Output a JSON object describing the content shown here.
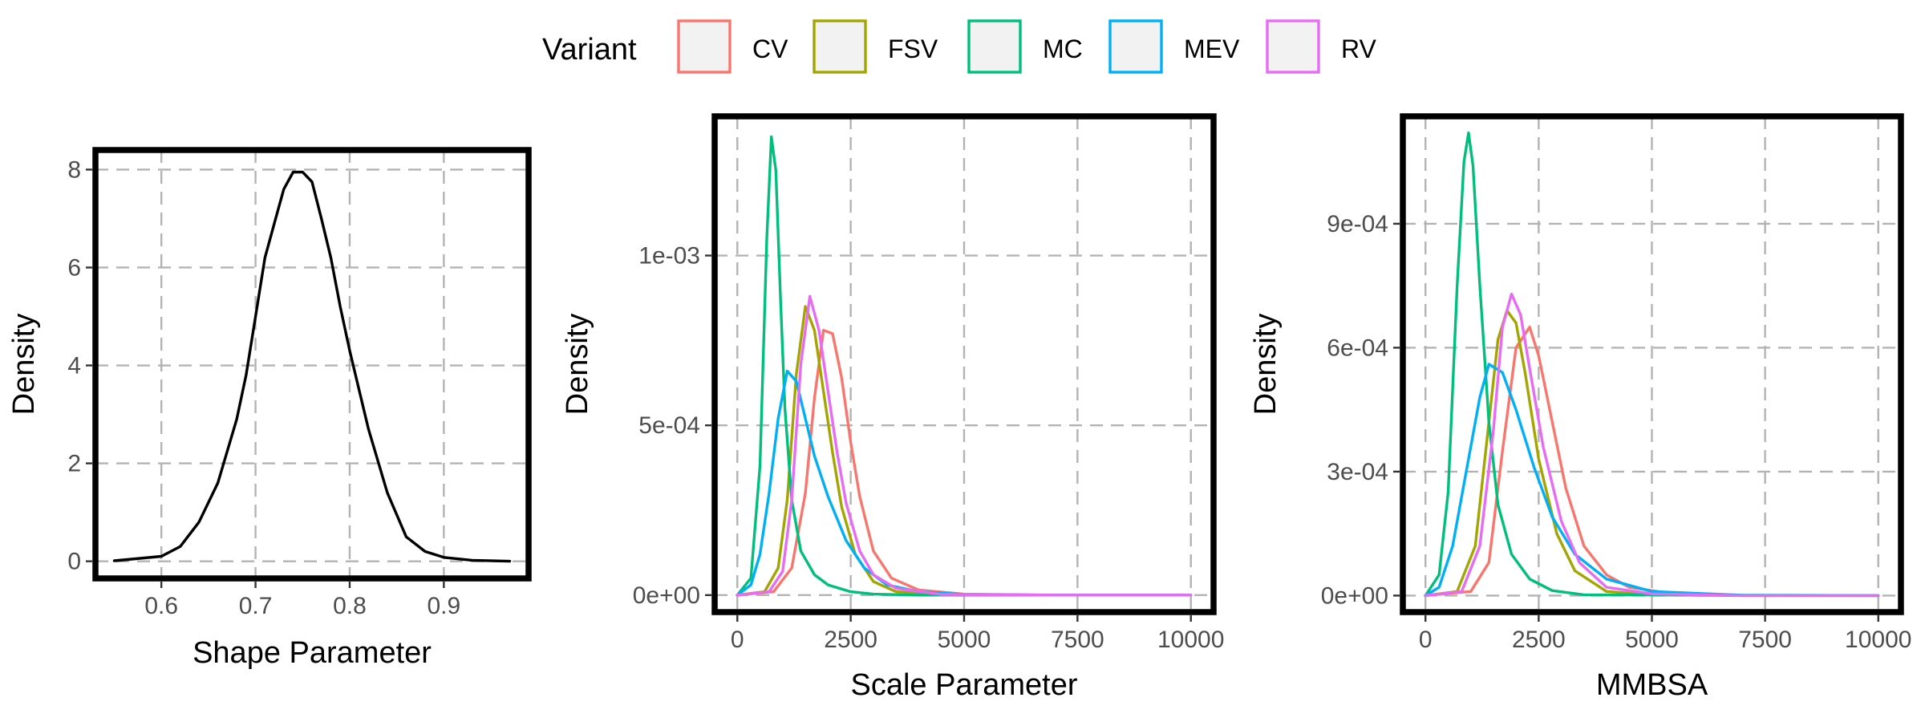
{
  "legend": {
    "title": "Variant",
    "entries": [
      {
        "name": "CV",
        "color": "#F8766D"
      },
      {
        "name": "FSV",
        "color": "#A3A500"
      },
      {
        "name": "MC",
        "color": "#00BF7D"
      },
      {
        "name": "MEV",
        "color": "#00B0F6"
      },
      {
        "name": "RV",
        "color": "#E76BF3"
      }
    ],
    "placement": "top-center",
    "key_fill": "#f2f2f2"
  },
  "chart_data": [
    {
      "type": "line",
      "kind": "density",
      "xlabel": "Shape Parameter",
      "ylabel": "Density",
      "xlim": [
        0.53,
        0.99
      ],
      "ylim": [
        -0.35,
        8.4
      ],
      "xticks": [
        0.6,
        0.7,
        0.8,
        0.9
      ],
      "xtick_labels": [
        "0.6",
        "0.7",
        "0.8",
        "0.9"
      ],
      "yticks": [
        0,
        2,
        4,
        6,
        8
      ],
      "ytick_labels": [
        "0",
        "2",
        "4",
        "6",
        "8"
      ],
      "grid": true,
      "series": [
        {
          "color": "#000000",
          "x": [
            0.55,
            0.6,
            0.62,
            0.64,
            0.66,
            0.68,
            0.69,
            0.7,
            0.71,
            0.72,
            0.73,
            0.74,
            0.75,
            0.76,
            0.77,
            0.78,
            0.79,
            0.8,
            0.82,
            0.84,
            0.86,
            0.88,
            0.9,
            0.93,
            0.97
          ],
          "y": [
            0.01,
            0.1,
            0.3,
            0.8,
            1.6,
            2.9,
            3.8,
            5.0,
            6.2,
            6.9,
            7.6,
            7.95,
            7.95,
            7.75,
            7.0,
            6.2,
            5.2,
            4.3,
            2.7,
            1.4,
            0.5,
            0.2,
            0.08,
            0.02,
            0.0
          ]
        }
      ]
    },
    {
      "type": "line",
      "kind": "density",
      "xlabel": "Scale Parameter",
      "ylabel": "Density",
      "xlim": [
        -500,
        10500
      ],
      "ylim": [
        -5e-05,
        0.00141
      ],
      "xticks": [
        0,
        2500,
        5000,
        7500,
        10000
      ],
      "xtick_labels": [
        "0",
        "2500",
        "5000",
        "7500",
        "10000"
      ],
      "yticks": [
        0,
        0.0005,
        0.001
      ],
      "ytick_labels": [
        "0e+00",
        "5e-04",
        "1e-03"
      ],
      "grid": true,
      "series": [
        {
          "name": "CV",
          "color": "#F8766D",
          "x": [
            0,
            800,
            1200,
            1500,
            1700,
            1900,
            2100,
            2300,
            2500,
            2700,
            3000,
            3400,
            4000,
            5000,
            7000,
            10000
          ],
          "y": [
            0,
            1e-05,
            8e-05,
            0.0003,
            0.00058,
            0.00078,
            0.00077,
            0.00064,
            0.00045,
            0.00029,
            0.00013,
            5e-05,
            1.5e-05,
            3e-06,
            0,
            0
          ]
        },
        {
          "name": "FSV",
          "color": "#A3A500",
          "x": [
            0,
            600,
            900,
            1100,
            1300,
            1500,
            1700,
            1900,
            2100,
            2300,
            2600,
            3000,
            3500,
            4500,
            7000,
            10000
          ],
          "y": [
            0,
            1e-05,
            8e-05,
            0.00028,
            0.00065,
            0.00085,
            0.00078,
            0.0006,
            0.00042,
            0.00026,
            0.00012,
            4e-05,
            1e-05,
            1e-06,
            0,
            0
          ]
        },
        {
          "name": "MC",
          "color": "#00BF7D",
          "x": [
            0,
            300,
            500,
            650,
            750,
            850,
            950,
            1050,
            1200,
            1400,
            1700,
            2000,
            2500,
            3000,
            4000,
            10000
          ],
          "y": [
            0,
            5e-05,
            0.00038,
            0.00105,
            0.00135,
            0.00125,
            0.00088,
            0.00055,
            0.00028,
            0.00013,
            6e-05,
            3e-05,
            1e-05,
            3e-06,
            0,
            0
          ]
        },
        {
          "name": "MEV",
          "color": "#00B0F6",
          "x": [
            0,
            300,
            500,
            700,
            900,
            1100,
            1300,
            1500,
            1700,
            2000,
            2400,
            2800,
            3300,
            4000,
            5000,
            7000,
            10000
          ],
          "y": [
            0,
            3e-05,
            0.00012,
            0.0003,
            0.00052,
            0.00066,
            0.00063,
            0.00052,
            0.00041,
            0.00029,
            0.00016,
            8e-05,
            3e-05,
            1e-05,
            2e-06,
            0,
            0
          ]
        },
        {
          "name": "RV",
          "color": "#E76BF3",
          "x": [
            0,
            700,
            1000,
            1200,
            1400,
            1600,
            1800,
            2000,
            2200,
            2400,
            2700,
            3000,
            3500,
            4500,
            7000,
            10000
          ],
          "y": [
            0,
            1e-05,
            7e-05,
            0.00028,
            0.00068,
            0.00088,
            0.00078,
            0.0006,
            0.00042,
            0.00027,
            0.00013,
            6e-05,
            2e-05,
            2e-06,
            0,
            0
          ]
        }
      ]
    },
    {
      "type": "line",
      "kind": "density",
      "xlabel": "MMBSA",
      "ylabel": "Density",
      "xlim": [
        -500,
        10500
      ],
      "ylim": [
        -4e-05,
        0.00116
      ],
      "xticks": [
        0,
        2500,
        5000,
        7500,
        10000
      ],
      "xtick_labels": [
        "0",
        "2500",
        "5000",
        "7500",
        "10000"
      ],
      "yticks": [
        0,
        0.0003,
        0.0006,
        0.0009
      ],
      "ytick_labels": [
        "0e+00",
        "3e-04",
        "6e-04",
        "9e-04"
      ],
      "grid": true,
      "series": [
        {
          "name": "CV",
          "color": "#F8766D",
          "x": [
            0,
            1000,
            1400,
            1700,
            2000,
            2300,
            2500,
            2800,
            3100,
            3500,
            4000,
            4500,
            5500,
            7000,
            10000
          ],
          "y": [
            0,
            1e-05,
            8e-05,
            0.00035,
            0.0006,
            0.00065,
            0.00058,
            0.00042,
            0.00026,
            0.00012,
            5e-05,
            2e-05,
            4e-06,
            0,
            0
          ]
        },
        {
          "name": "FSV",
          "color": "#A3A500",
          "x": [
            0,
            700,
            1100,
            1400,
            1600,
            1800,
            2000,
            2200,
            2500,
            2900,
            3300,
            4000,
            5000,
            7000,
            10000
          ],
          "y": [
            0,
            1e-05,
            0.00012,
            0.00042,
            0.00062,
            0.00069,
            0.00066,
            0.00054,
            0.00033,
            0.00015,
            6e-05,
            1e-05,
            2e-06,
            0,
            0
          ]
        },
        {
          "name": "MC",
          "color": "#00BF7D",
          "x": [
            0,
            300,
            500,
            700,
            850,
            950,
            1050,
            1200,
            1400,
            1600,
            1900,
            2300,
            2800,
            3500,
            10000
          ],
          "y": [
            0,
            5e-05,
            0.00025,
            0.00075,
            0.00105,
            0.00112,
            0.00104,
            0.00075,
            0.00042,
            0.00022,
            0.0001,
            4e-05,
            1.2e-05,
            2e-06,
            0
          ]
        },
        {
          "name": "MEV",
          "color": "#00B0F6",
          "x": [
            0,
            300,
            600,
            900,
            1200,
            1400,
            1700,
            2000,
            2400,
            2800,
            3300,
            4000,
            5000,
            7000,
            10000
          ],
          "y": [
            0,
            2e-05,
            0.00012,
            0.0003,
            0.00048,
            0.00056,
            0.00054,
            0.00045,
            0.00031,
            0.00019,
            0.0001,
            4e-05,
            1e-05,
            1e-06,
            0
          ]
        },
        {
          "name": "RV",
          "color": "#E76BF3",
          "x": [
            0,
            800,
            1200,
            1500,
            1700,
            1900,
            2100,
            2300,
            2600,
            3000,
            3400,
            4000,
            5000,
            7000,
            10000
          ],
          "y": [
            0,
            1e-05,
            0.00012,
            0.0004,
            0.00065,
            0.00073,
            0.00068,
            0.00055,
            0.00036,
            0.00018,
            8e-05,
            2e-05,
            4e-06,
            0,
            0
          ]
        }
      ]
    }
  ]
}
